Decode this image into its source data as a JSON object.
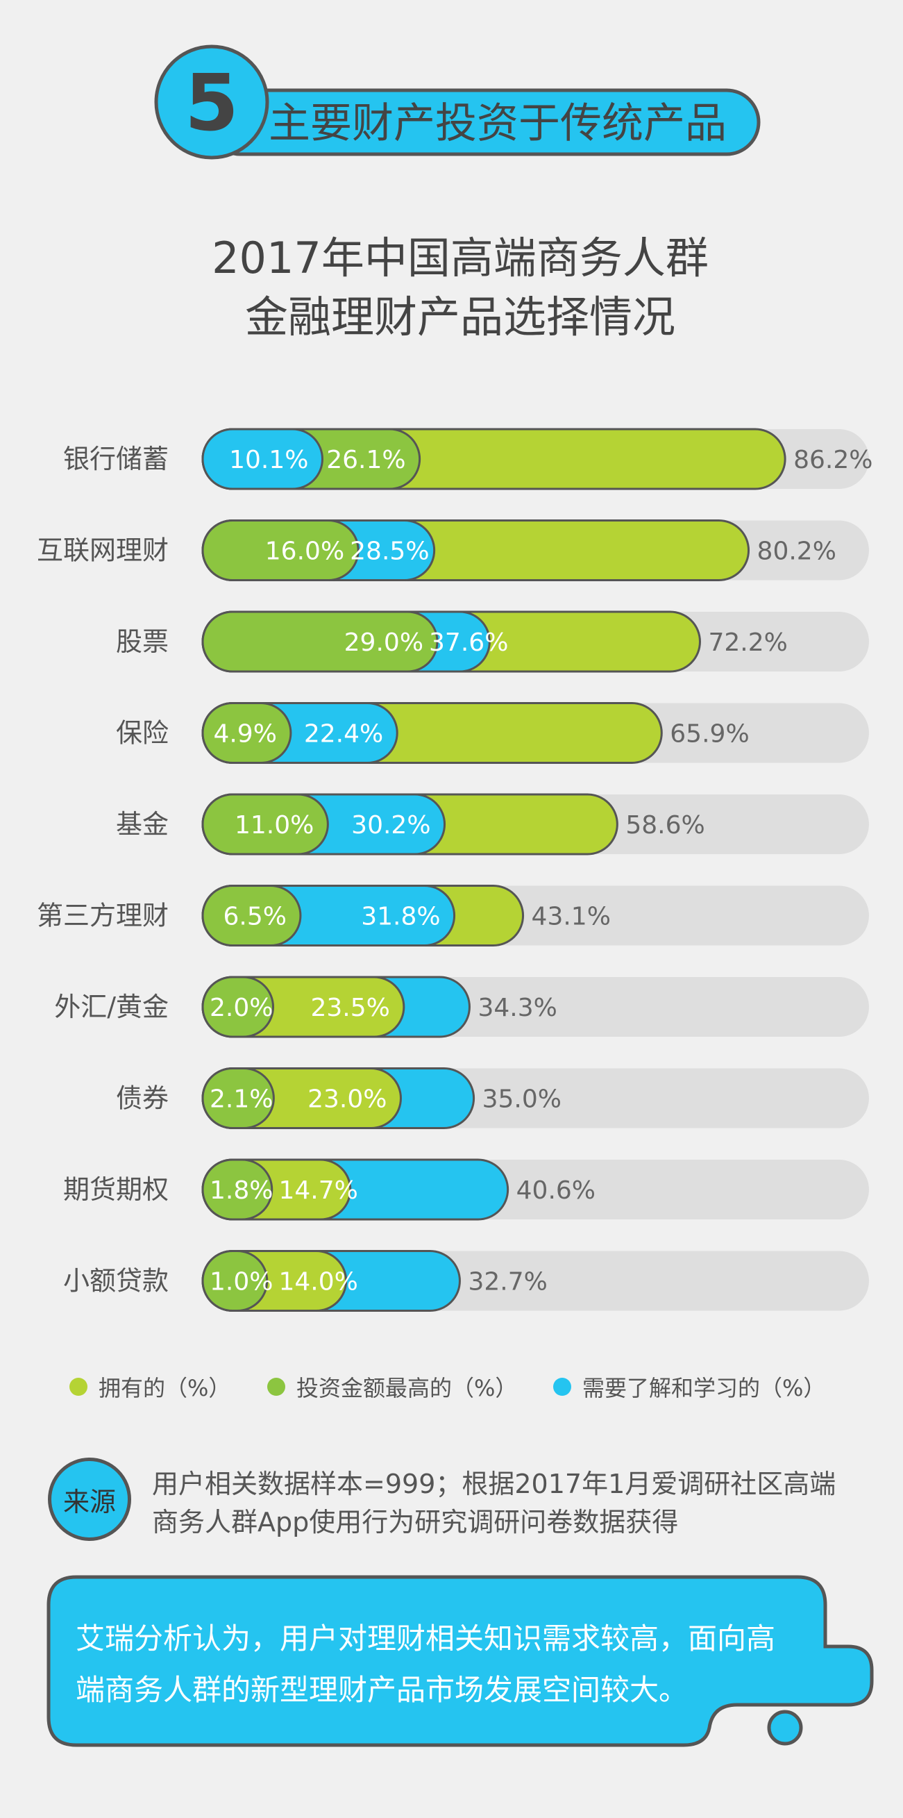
{
  "colors": {
    "background": "#f0f0f0",
    "accent": "#25c4f0",
    "track": "#dedede",
    "outline": "#555555"
  },
  "header": {
    "number": "5",
    "heading": "主要财产投资于传统产品"
  },
  "chart_data": {
    "type": "bar",
    "orientation": "horizontal",
    "title": [
      "2017年中国高端商务人群",
      "金融理财产品选择情况"
    ],
    "categories": [
      "银行储蓄",
      "互联网理财",
      "股票",
      "保险",
      "基金",
      "第三方理财",
      "外汇/黄金",
      "债券",
      "期货期权",
      "小额贷款"
    ],
    "unit": "%",
    "xlim": [
      0,
      100
    ],
    "grid": false,
    "legend": "bottom",
    "series": [
      {
        "name": "拥有的（%）",
        "color": "#b5d334",
        "values": [
          86.2,
          80.2,
          72.2,
          65.9,
          58.6,
          43.1,
          23.5,
          23.0,
          14.7,
          14.0
        ]
      },
      {
        "name": "投资金额最高的（%）",
        "color": "#8cc540",
        "values": [
          26.1,
          16.0,
          29.0,
          4.9,
          11.0,
          6.5,
          2.0,
          2.1,
          1.8,
          1.0
        ]
      },
      {
        "name": "需要了解和学习的（%）",
        "color": "#25c4f0",
        "values": [
          10.1,
          28.5,
          37.6,
          22.4,
          30.2,
          31.8,
          34.3,
          35.0,
          40.6,
          32.7
        ]
      }
    ]
  },
  "source": {
    "badge": "来源",
    "lines": [
      "用户相关数据样本=999；根据2017年1月爱调研社区高端",
      "商务人群App使用行为研究调研问卷数据获得"
    ]
  },
  "conclusion": {
    "lines": [
      "艾瑞分析认为，用户对理财相关知识需求较高，面向高",
      "端商务人群的新型理财产品市场发展空间较大。"
    ]
  }
}
